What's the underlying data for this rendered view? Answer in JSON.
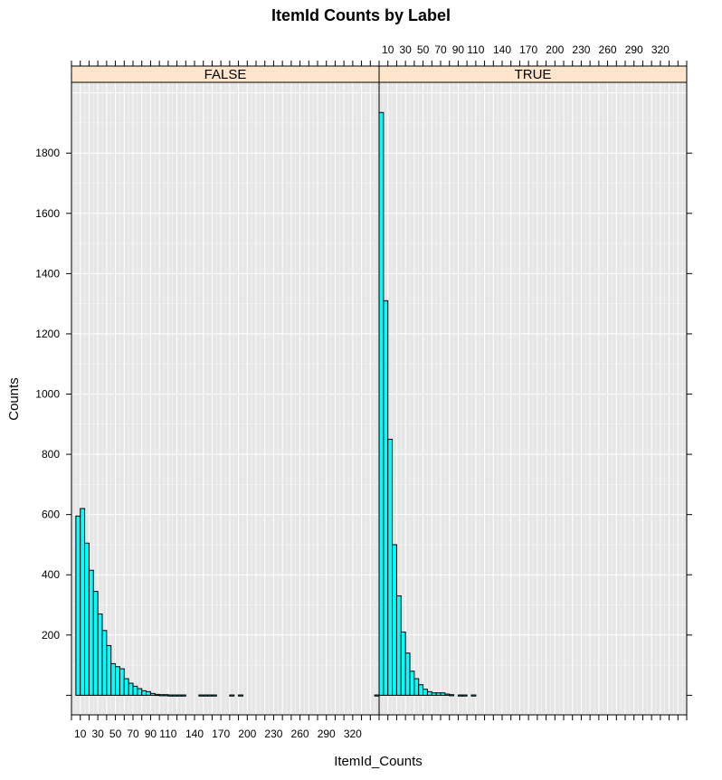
{
  "chart_data": {
    "type": "bar",
    "title": "ItemId Counts by Label",
    "xlabel": "ItemId_Counts",
    "ylabel": "Counts",
    "xlim": [
      0,
      350
    ],
    "ylim": [
      -65,
      2035
    ],
    "bin_width": 5,
    "x_ticks": [
      10,
      30,
      50,
      70,
      90,
      110,
      140,
      170,
      200,
      230,
      260,
      290,
      320
    ],
    "y_ticks": [
      200,
      400,
      600,
      800,
      1000,
      1200,
      1400,
      1600,
      1800
    ],
    "grid": true,
    "panels": [
      {
        "label": "FALSE",
        "bins": [
          {
            "x": 5,
            "y": 595
          },
          {
            "x": 10,
            "y": 620
          },
          {
            "x": 15,
            "y": 505
          },
          {
            "x": 20,
            "y": 415
          },
          {
            "x": 25,
            "y": 345
          },
          {
            "x": 30,
            "y": 270
          },
          {
            "x": 35,
            "y": 215
          },
          {
            "x": 40,
            "y": 165
          },
          {
            "x": 45,
            "y": 105
          },
          {
            "x": 50,
            "y": 95
          },
          {
            "x": 55,
            "y": 88
          },
          {
            "x": 60,
            "y": 55
          },
          {
            "x": 65,
            "y": 40
          },
          {
            "x": 70,
            "y": 30
          },
          {
            "x": 75,
            "y": 22
          },
          {
            "x": 80,
            "y": 15
          },
          {
            "x": 85,
            "y": 12
          },
          {
            "x": 90,
            "y": 6
          },
          {
            "x": 95,
            "y": 3
          },
          {
            "x": 100,
            "y": 2
          },
          {
            "x": 105,
            "y": 2
          },
          {
            "x": 110,
            "y": 1
          },
          {
            "x": 115,
            "y": 1
          },
          {
            "x": 120,
            "y": 1
          },
          {
            "x": 125,
            "y": 1
          },
          {
            "x": 145,
            "y": 1
          },
          {
            "x": 150,
            "y": 1
          },
          {
            "x": 155,
            "y": 1
          },
          {
            "x": 160,
            "y": 1
          },
          {
            "x": 180,
            "y": 1
          },
          {
            "x": 190,
            "y": 1
          },
          {
            "x": 345,
            "y": 1
          }
        ]
      },
      {
        "label": "TRUE",
        "bins": [
          {
            "x": 0,
            "y": 1935
          },
          {
            "x": 5,
            "y": 1310
          },
          {
            "x": 10,
            "y": 850
          },
          {
            "x": 15,
            "y": 500
          },
          {
            "x": 20,
            "y": 330
          },
          {
            "x": 25,
            "y": 210
          },
          {
            "x": 30,
            "y": 140
          },
          {
            "x": 35,
            "y": 80
          },
          {
            "x": 40,
            "y": 55
          },
          {
            "x": 45,
            "y": 35
          },
          {
            "x": 50,
            "y": 20
          },
          {
            "x": 55,
            "y": 12
          },
          {
            "x": 60,
            "y": 8
          },
          {
            "x": 65,
            "y": 8
          },
          {
            "x": 70,
            "y": 8
          },
          {
            "x": 75,
            "y": 4
          },
          {
            "x": 80,
            "y": 2
          },
          {
            "x": 90,
            "y": 1
          },
          {
            "x": 95,
            "y": 1
          },
          {
            "x": 105,
            "y": 1
          }
        ]
      }
    ]
  },
  "colors": {
    "bar_fill": "#00ffff",
    "bar_stroke": "#000000",
    "panel_bg": "#e6e6e6",
    "grid": "#ffffff",
    "strip_bg": "#ffe5cc"
  }
}
